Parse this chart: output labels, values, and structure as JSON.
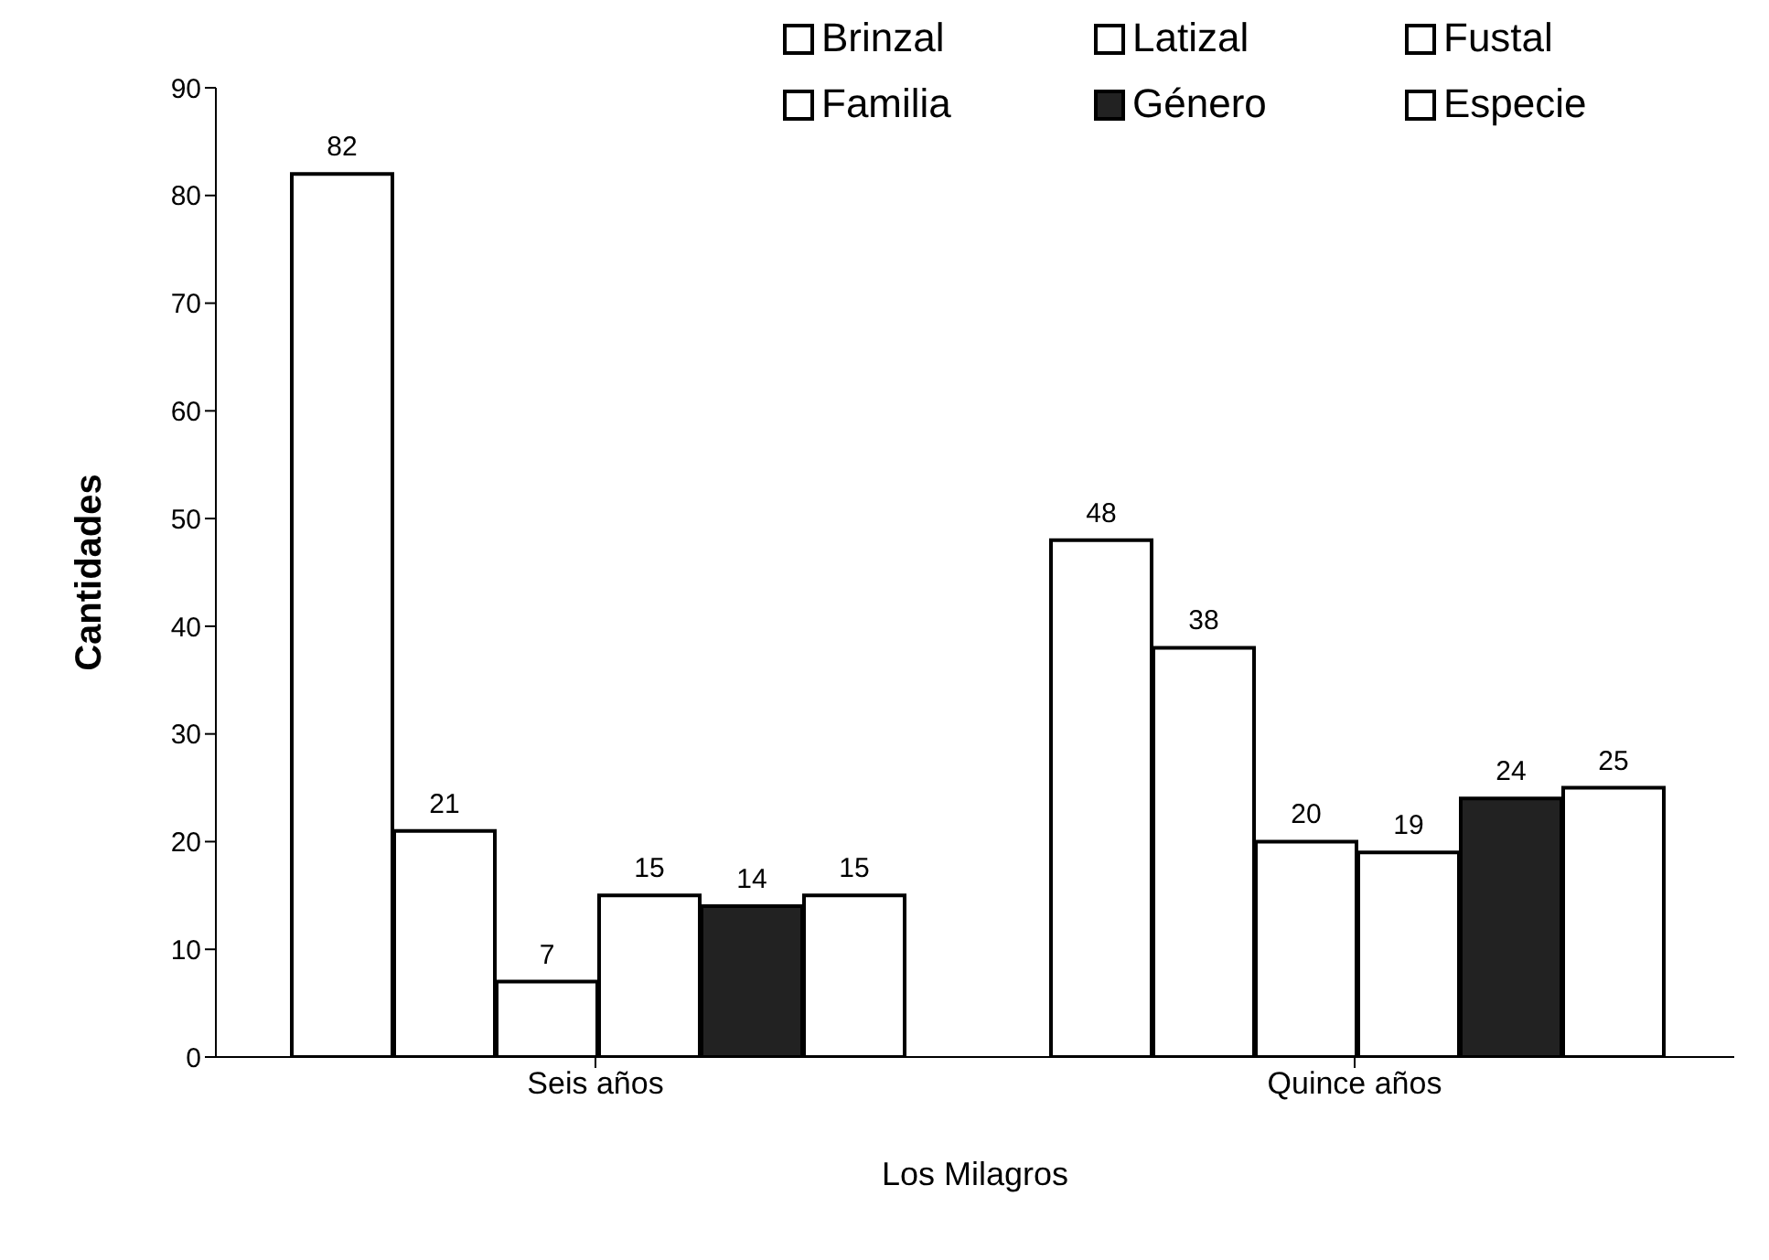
{
  "chart_data": {
    "type": "bar",
    "categories": [
      "Seis años",
      "Quince años"
    ],
    "series": [
      {
        "name": "Brinzal",
        "color": "#ffffff",
        "values": [
          82,
          48
        ]
      },
      {
        "name": "Latizal",
        "color": "#ffffff",
        "values": [
          21,
          38
        ]
      },
      {
        "name": "Fustal",
        "color": "#ffffff",
        "values": [
          7,
          20
        ]
      },
      {
        "name": "Familia",
        "color": "#ffffff",
        "values": [
          15,
          19
        ]
      },
      {
        "name": "Género",
        "color": "#222222",
        "values": [
          14,
          24
        ]
      },
      {
        "name": "Especie",
        "color": "#ffffff",
        "values": [
          15,
          25
        ]
      }
    ],
    "xlabel": "Los Milagros",
    "ylabel": "Cantidades",
    "ylim": [
      0,
      90
    ],
    "yticks": [
      0,
      10,
      20,
      30,
      40,
      50,
      60,
      70,
      80,
      90
    ],
    "grid": false,
    "legend": "top right",
    "data_labels": true
  }
}
